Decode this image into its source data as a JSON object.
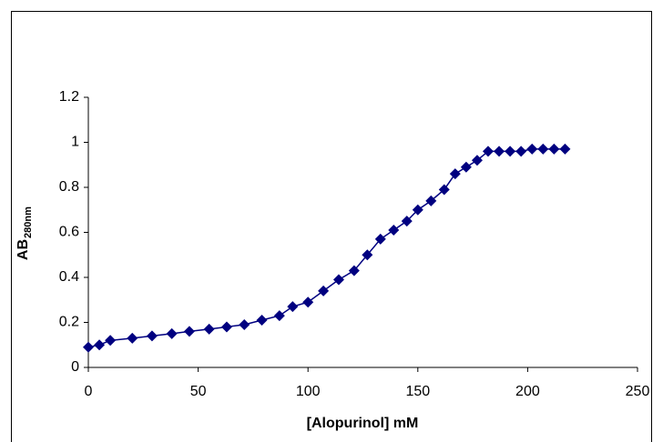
{
  "chart_data": {
    "type": "line",
    "xlabel": "[Alopurinol] mM",
    "ylabel": "AB",
    "ylabel_subscript": "280nm",
    "x": [
      0,
      5,
      10,
      20,
      29,
      38,
      46,
      55,
      63,
      71,
      79,
      87,
      93,
      100,
      107,
      114,
      121,
      127,
      133,
      139,
      145,
      150,
      156,
      162,
      167,
      172,
      177,
      182,
      187,
      192,
      197,
      202,
      207,
      212,
      217
    ],
    "series": [
      {
        "color": "#000080",
        "values": [
          0.09,
          0.1,
          0.12,
          0.13,
          0.14,
          0.15,
          0.16,
          0.17,
          0.18,
          0.19,
          0.21,
          0.23,
          0.27,
          0.29,
          0.34,
          0.39,
          0.43,
          0.5,
          0.57,
          0.61,
          0.65,
          0.7,
          0.74,
          0.79,
          0.86,
          0.89,
          0.92,
          0.96,
          0.96,
          0.96,
          0.96,
          0.97,
          0.97,
          0.97,
          0.97
        ]
      }
    ],
    "xlim": [
      0,
      250
    ],
    "xticks": [
      0,
      50,
      100,
      150,
      200,
      250
    ],
    "ylim": [
      0,
      1.2
    ],
    "yticks": [
      0,
      0.2,
      0.4,
      0.6,
      0.8,
      1,
      1.2
    ],
    "marker": "diamond"
  }
}
